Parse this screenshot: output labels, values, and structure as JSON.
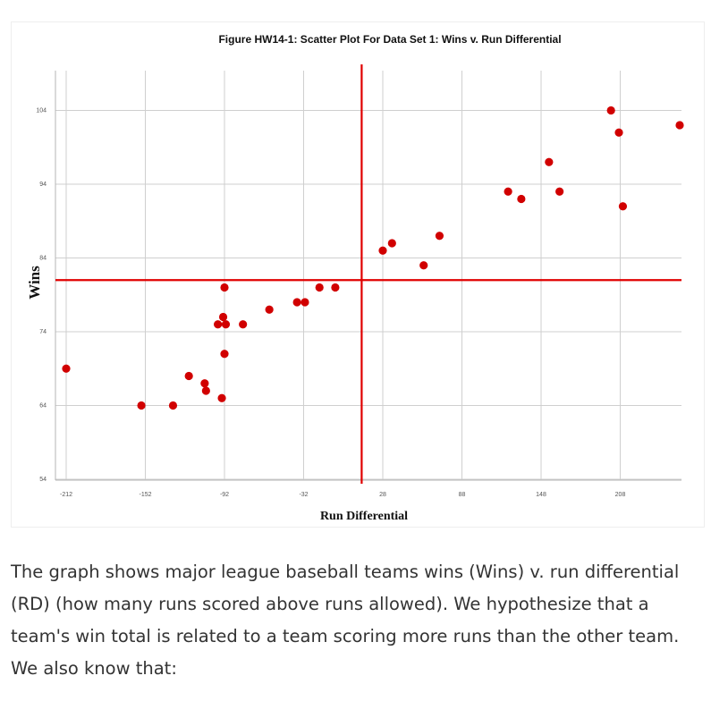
{
  "chart_data": {
    "type": "scatter",
    "title": "Figure HW14-1: Scatter Plot For Data Set 1: Wins v. Run Differential",
    "xlabel": "Run Differential",
    "ylabel": "Wins",
    "xlim": [
      -212,
      240
    ],
    "ylim": [
      54,
      106
    ],
    "xticks": [
      -212,
      -152,
      -92,
      -32,
      28,
      88,
      148,
      208
    ],
    "yticks": [
      54,
      64,
      74,
      84,
      94,
      104
    ],
    "grid": true,
    "marker_color": "#d10000",
    "reference_lines": [
      {
        "axis": "x",
        "value": 12,
        "color": "#e00000"
      },
      {
        "axis": "y",
        "value": 81,
        "color": "#e00000"
      }
    ],
    "points": [
      {
        "x": -212,
        "y": 69
      },
      {
        "x": -155,
        "y": 64
      },
      {
        "x": -131,
        "y": 64
      },
      {
        "x": -119,
        "y": 68
      },
      {
        "x": -107,
        "y": 67
      },
      {
        "x": -106,
        "y": 66
      },
      {
        "x": -97,
        "y": 75
      },
      {
        "x": -93,
        "y": 76
      },
      {
        "x": -92,
        "y": 80
      },
      {
        "x": -91,
        "y": 75
      },
      {
        "x": -92,
        "y": 71
      },
      {
        "x": -94,
        "y": 65
      },
      {
        "x": -78,
        "y": 75
      },
      {
        "x": -58,
        "y": 77
      },
      {
        "x": -37,
        "y": 78
      },
      {
        "x": -31,
        "y": 78
      },
      {
        "x": -20,
        "y": 80
      },
      {
        "x": -8,
        "y": 80
      },
      {
        "x": 28,
        "y": 85
      },
      {
        "x": 35,
        "y": 86
      },
      {
        "x": 59,
        "y": 83
      },
      {
        "x": 71,
        "y": 87
      },
      {
        "x": 123,
        "y": 93
      },
      {
        "x": 133,
        "y": 92
      },
      {
        "x": 154,
        "y": 97
      },
      {
        "x": 162,
        "y": 93
      },
      {
        "x": 201,
        "y": 104
      },
      {
        "x": 207,
        "y": 101
      },
      {
        "x": 210,
        "y": 91
      },
      {
        "x": 269,
        "y": 102
      }
    ]
  },
  "caption": {
    "paragraph": "The graph shows major league baseball teams wins (Wins) v. run differential (RD) (how many runs scored above runs allowed). We hypothesize that a team's win total is related to a team scoring more runs than the other team.",
    "followup": "We also know that:"
  }
}
